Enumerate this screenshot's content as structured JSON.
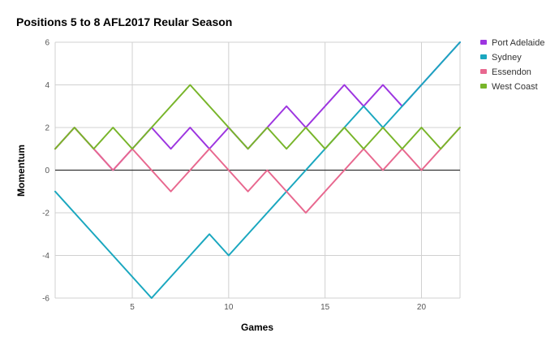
{
  "chart_data": {
    "type": "line",
    "title": "Positions 5 to 8 AFL2017 Reular Season",
    "xlabel": "Games",
    "ylabel": "Momentum",
    "xlim": [
      1,
      22
    ],
    "ylim": [
      -6,
      6
    ],
    "x_ticks": [
      5,
      10,
      15,
      20
    ],
    "y_ticks": [
      -6,
      -4,
      -2,
      0,
      2,
      4,
      6
    ],
    "grid": true,
    "legend_position": "right",
    "x": [
      1,
      2,
      3,
      4,
      5,
      6,
      7,
      8,
      9,
      10,
      11,
      12,
      13,
      14,
      15,
      16,
      17,
      18,
      19,
      20,
      21,
      22
    ],
    "series": [
      {
        "name": "Port Adelaide",
        "color": "#9d35e0",
        "values": [
          1,
          2,
          1,
          0,
          1,
          2,
          1,
          2,
          1,
          2,
          1,
          2,
          3,
          2,
          3,
          4,
          3,
          4,
          3,
          4,
          5,
          6
        ]
      },
      {
        "name": "Sydney",
        "color": "#1aa7bf",
        "values": [
          -1,
          -2,
          -3,
          -4,
          -5,
          -6,
          -5,
          -4,
          -3,
          -4,
          -3,
          -2,
          -1,
          0,
          1,
          2,
          3,
          2,
          3,
          4,
          5,
          6
        ]
      },
      {
        "name": "Essendon",
        "color": "#e8688f",
        "values": [
          1,
          2,
          1,
          0,
          1,
          0,
          -1,
          0,
          1,
          0,
          -1,
          0,
          -1,
          -2,
          -1,
          0,
          1,
          0,
          1,
          0,
          1,
          2
        ]
      },
      {
        "name": "West Coast",
        "color": "#78b52a",
        "values": [
          1,
          2,
          1,
          2,
          1,
          2,
          3,
          4,
          3,
          2,
          1,
          2,
          1,
          2,
          1,
          2,
          1,
          2,
          1,
          2,
          1,
          2
        ]
      }
    ]
  }
}
